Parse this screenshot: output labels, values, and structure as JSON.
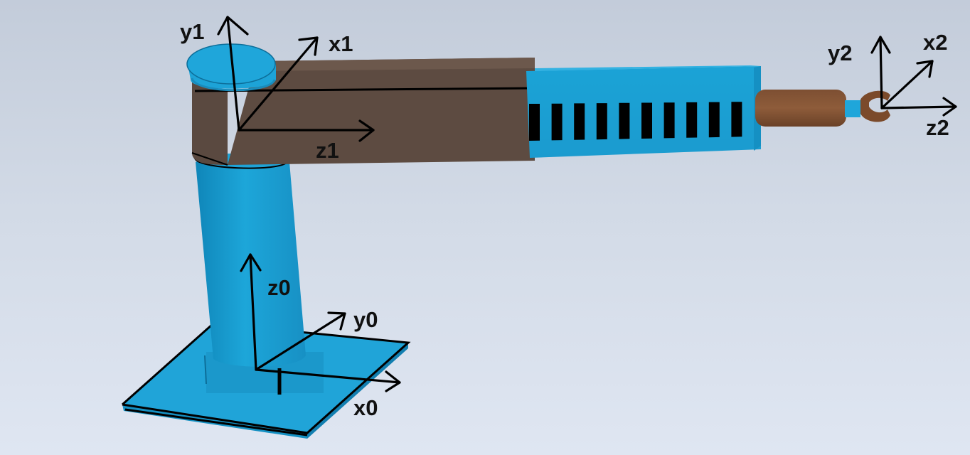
{
  "colors": {
    "blue": "#1a9fd3",
    "blue_dark": "#0f7fae",
    "blue_light": "#3fb6e4",
    "brown": "#5e4c42",
    "brown_dark": "#4a3b33",
    "gripper_brown": "#7a4a2a",
    "axis": "#000000"
  },
  "frames": {
    "frame0": {
      "x_label": "x0",
      "y_label": "y0",
      "z_label": "z0"
    },
    "frame1": {
      "x_label": "x1",
      "y_label": "y1",
      "z_label": "z1"
    },
    "frame2": {
      "x_label": "x2",
      "y_label": "y2",
      "z_label": "z2"
    }
  }
}
